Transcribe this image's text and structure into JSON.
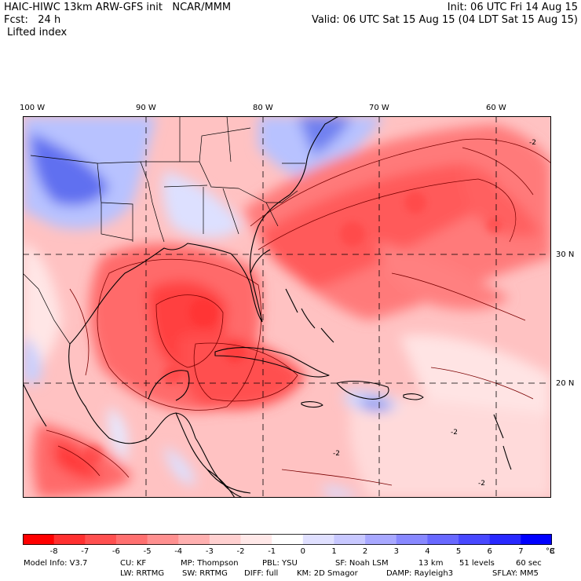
{
  "header": {
    "left_line1": "HAIC-HIWC 13km ARW-GFS init   NCAR/MMM",
    "left_line2": "Fcst:   24 h",
    "left_line3": "Lifted index",
    "right_line1": "Init: 06 UTC Fri 14 Aug 15",
    "right_line2": "Valid: 06 UTC Sat 15 Aug 15 (04 LDT Sat 15 Aug 15)"
  },
  "map": {
    "field": "Lifted index",
    "lon_labels": [
      "100 W",
      "90 W",
      "80 W",
      "70 W",
      "60 W"
    ],
    "lat_labels": [
      "30 N",
      "20 N"
    ],
    "contour_labels": [
      "-2",
      "-2",
      "-2",
      "-2"
    ]
  },
  "colorbar": {
    "colors": [
      "#ff0000",
      "#ff3030",
      "#ff5050",
      "#ff7070",
      "#ff9090",
      "#ffb0b0",
      "#ffd0d0",
      "#ffe8e8",
      "#ffffff",
      "#e0e0ff",
      "#c8c8ff",
      "#a8a8ff",
      "#8888ff",
      "#6868ff",
      "#4848ff",
      "#2828ff",
      "#0000ff"
    ],
    "labels": [
      "-8",
      "-7",
      "-6",
      "-5",
      "-4",
      "-3",
      "-2",
      "-1",
      "0",
      "1",
      "2",
      "3",
      "4",
      "5",
      "6",
      "7",
      "8"
    ],
    "unit": "°C"
  },
  "model_info": {
    "line1": [
      "Model Info: V3.7",
      "CU: KF",
      "MP: Thompson",
      "PBL: YSU",
      "SF: Noah LSM",
      "13 km",
      "51 levels",
      "60 sec"
    ],
    "line2": [
      "LW: RRTMG",
      "SW: RRTMG",
      "DIFF: full",
      "KM: 2D Smagor",
      "DAMP: Rayleigh3",
      "SFLAY: MM5"
    ]
  }
}
